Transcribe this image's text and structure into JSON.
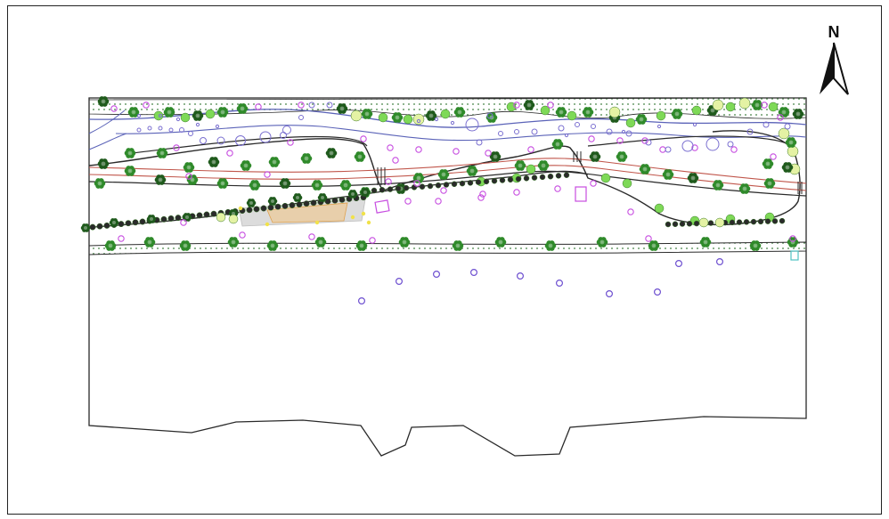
{
  "north_arrow": {
    "label": "N",
    "icon": "north-arrow-icon"
  },
  "colors": {
    "outline": "#2a2a2a",
    "tree_dark": "#1f5a1c",
    "tree_mid": "#2f8a2a",
    "tree_light": "#7ed957",
    "shrub_yellow": "#e4f2a4",
    "lamp": "#c74de0",
    "bollard": "#7a6fd0",
    "path_blue": "#5b63b8",
    "road_red": "#c0554a",
    "hatch": "#4b8b4b",
    "plaza": "#dcdcdc",
    "deck": "#f3c27a"
  }
}
